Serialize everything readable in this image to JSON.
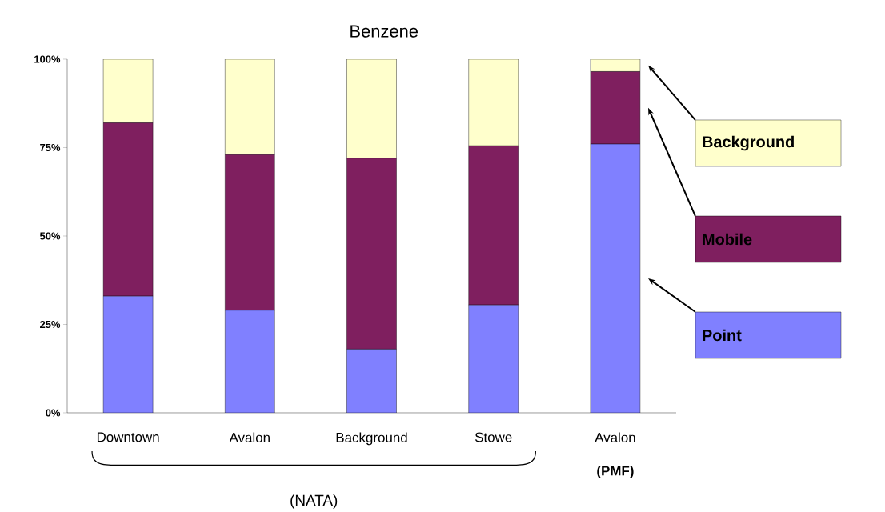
{
  "chart_data": {
    "type": "bar",
    "stacked": true,
    "title": "Benzene",
    "categories": [
      "Downtown",
      "Avalon",
      "Background",
      "Stowe",
      "Avalon"
    ],
    "series": [
      {
        "name": "Point",
        "color": "#8080ff",
        "values": [
          33,
          29,
          18,
          30.5,
          76
        ]
      },
      {
        "name": "Mobile",
        "color": "#7f1f5f",
        "values": [
          49,
          44,
          54,
          45,
          20.5
        ]
      },
      {
        "name": "Background",
        "color": "#ffffcc",
        "values": [
          18,
          27,
          28,
          24.5,
          3.5
        ]
      }
    ],
    "ylim": [
      0,
      100
    ],
    "yticks": [
      {
        "value": 0,
        "label": "0%"
      },
      {
        "value": 25,
        "label": "25%"
      },
      {
        "value": 50,
        "label": "50%"
      },
      {
        "value": 75,
        "label": "75%"
      },
      {
        "value": 100,
        "label": "100%"
      }
    ],
    "legend": "right",
    "annotations": [
      "(NATA)",
      "(PMF)"
    ]
  }
}
